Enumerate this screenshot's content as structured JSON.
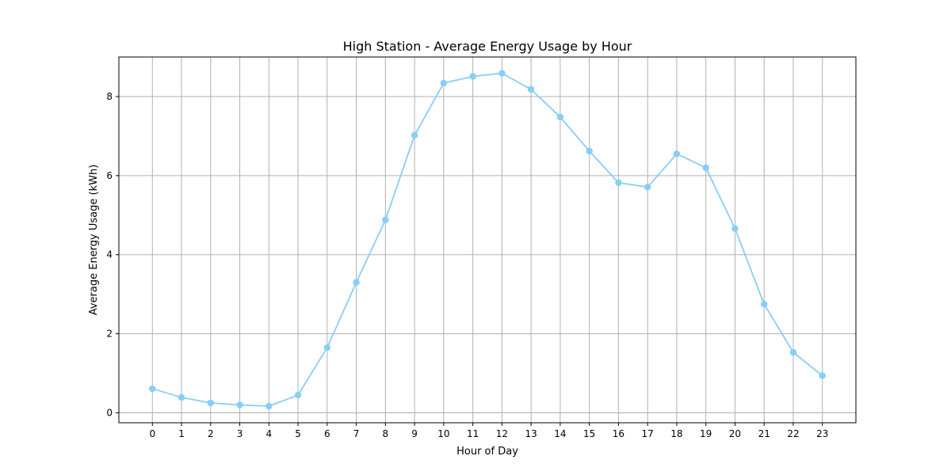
{
  "chart_data": {
    "type": "line",
    "title": "High Station - Average Energy Usage by Hour",
    "xlabel": "Hour of Day",
    "ylabel": "Average Energy Usage (kWh)",
    "x": [
      0,
      1,
      2,
      3,
      4,
      5,
      6,
      7,
      8,
      9,
      10,
      11,
      12,
      13,
      14,
      15,
      16,
      17,
      18,
      19,
      20,
      21,
      22,
      23
    ],
    "series": [
      {
        "values": [
          0.61,
          0.39,
          0.25,
          0.2,
          0.17,
          0.45,
          1.65,
          3.3,
          4.88,
          7.02,
          8.34,
          8.51,
          8.59,
          8.18,
          7.48,
          6.62,
          5.82,
          5.71,
          6.55,
          6.2,
          4.66,
          2.75,
          1.53,
          0.94
        ],
        "color": "#87CEFA"
      }
    ],
    "xlim": [
      -1.15,
      24.15
    ],
    "ylim": [
      -0.25,
      9.0
    ],
    "yticks": [
      0,
      2,
      4,
      6,
      8
    ],
    "grid": true,
    "grid_color": "#b0b0b0"
  }
}
